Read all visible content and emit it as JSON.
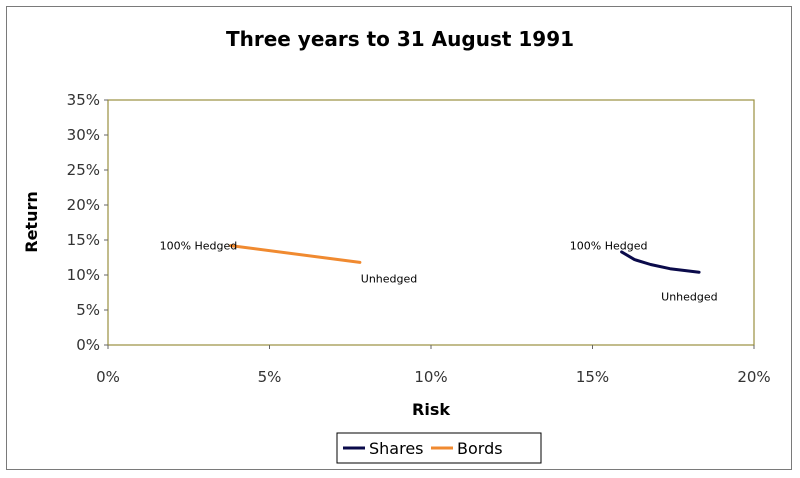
{
  "chart_data": {
    "type": "line",
    "title": "Three years to 31 August 1991",
    "xlabel": "Risk",
    "ylabel": "Return",
    "xlim": [
      0,
      20
    ],
    "ylim": [
      0,
      35
    ],
    "x_ticks": [
      "0%",
      "5%",
      "10%",
      "15%",
      "20%"
    ],
    "y_ticks": [
      "0%",
      "5%",
      "10%",
      "15%",
      "20%",
      "25%",
      "30%",
      "35%"
    ],
    "grid": false,
    "legend_position": "bottom",
    "series": [
      {
        "name": "Shares",
        "color": "#0a0a4a",
        "x": [
          15.9,
          16.3,
          16.8,
          17.4,
          18.3
        ],
        "y": [
          13.3,
          12.2,
          11.5,
          10.9,
          10.4
        ]
      },
      {
        "name": "Bords",
        "color": "#f08a30",
        "x": [
          3.8,
          7.8
        ],
        "y": [
          14.2,
          11.8
        ]
      }
    ],
    "annotations": [
      {
        "text": "100% Hedged",
        "x": 2.8,
        "y": 14.2
      },
      {
        "text": "Unhedged",
        "x": 8.7,
        "y": 9.5
      },
      {
        "text": "100% Hedged",
        "x": 15.5,
        "y": 14.2
      },
      {
        "text": "Unhedged",
        "x": 18.0,
        "y": 6.9
      }
    ]
  }
}
